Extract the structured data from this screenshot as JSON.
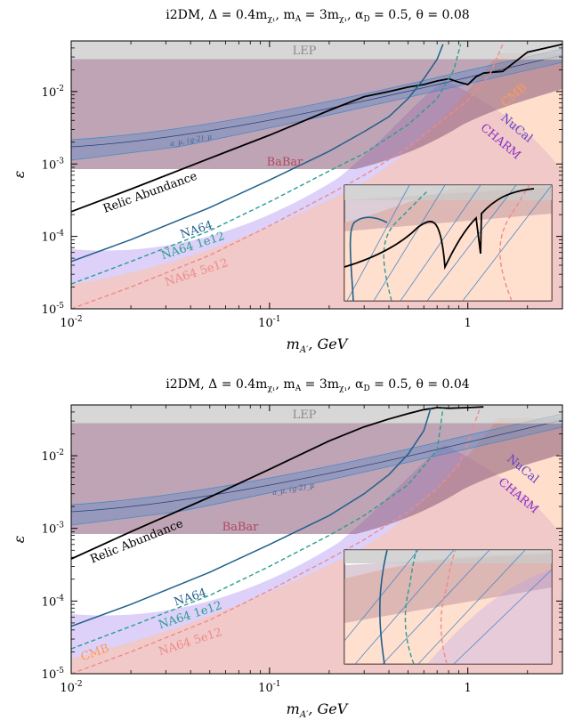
{
  "colors": {
    "lep": "#c9c9c9",
    "babar": "#8a5a78",
    "nucal": "#b39af2",
    "cmb": "#ffc2a0",
    "relic": "#000000",
    "na64": "#1f5f8b",
    "na64_1e12": "#2a9d8f",
    "na64_5e12": "#f08a8a",
    "gm2_band": "#4a88c7"
  },
  "chart_data": [
    {
      "type": "line",
      "title": "i2DM, Δ = 0.4m_{χ1}, m_A = 3m_{χ1}, α_D = 0.5, θ = 0.08",
      "xlabel": "m_{A'}, GeV",
      "ylabel": "ε",
      "xscale": "log",
      "yscale": "log",
      "xlim": [
        0.01,
        3
      ],
      "ylim": [
        1e-05,
        0.05
      ],
      "xticks": [
        "10^{-2}",
        "10^{-1}",
        "1"
      ],
      "yticks": [
        "10^{-5}",
        "10^{-4}",
        "10^{-3}",
        "10^{-2}"
      ],
      "region_labels": [
        "LEP",
        "BaBar",
        "CMB",
        "NuCal",
        "CHARM",
        "a_μ, (g-2)_μ"
      ],
      "series": [
        {
          "name": "Relic Abundance",
          "x": [
            0.01,
            0.02,
            0.05,
            0.1,
            0.2,
            0.3,
            0.4,
            0.5,
            0.6,
            0.7,
            0.8,
            0.9,
            1.0,
            1.1,
            1.2,
            1.5,
            2.0,
            3.0
          ],
          "y": [
            0.00022,
            0.00045,
            0.0012,
            0.0025,
            0.0055,
            0.0085,
            0.01,
            0.0115,
            0.0125,
            0.014,
            0.015,
            0.0135,
            0.0125,
            0.016,
            0.018,
            0.019,
            0.035,
            0.045
          ]
        },
        {
          "name": "NA64",
          "x": [
            0.01,
            0.02,
            0.05,
            0.1,
            0.2,
            0.3,
            0.4,
            0.5,
            0.6,
            0.7,
            0.75
          ],
          "y": [
            4.5e-05,
            9e-05,
            0.00025,
            0.0006,
            0.0015,
            0.0028,
            0.0045,
            0.008,
            0.015,
            0.028,
            0.045
          ]
        },
        {
          "name": "NA64 1e12",
          "x": [
            0.01,
            0.02,
            0.05,
            0.1,
            0.2,
            0.3,
            0.5,
            0.7,
            0.85,
            0.92
          ],
          "y": [
            2.2e-05,
            4.5e-05,
            0.00012,
            0.0003,
            0.0008,
            0.0014,
            0.0035,
            0.008,
            0.02,
            0.045
          ]
        },
        {
          "name": "NA64 5e12",
          "x": [
            0.01,
            0.02,
            0.05,
            0.1,
            0.2,
            0.3,
            0.5,
            0.7,
            1.0,
            1.3,
            1.5
          ],
          "y": [
            1e-05,
            2e-05,
            5.5e-05,
            0.00014,
            0.00038,
            0.0007,
            0.0017,
            0.0035,
            0.0075,
            0.018,
            0.045
          ]
        }
      ]
    },
    {
      "type": "line",
      "title": "i2DM, Δ = 0.4m_{χ1}, m_A = 3m_{χ1}, α_D = 0.5, θ = 0.04",
      "xlabel": "m_{A'}, GeV",
      "ylabel": "ε",
      "xscale": "log",
      "yscale": "log",
      "xlim": [
        0.01,
        3
      ],
      "ylim": [
        1e-05,
        0.05
      ],
      "xticks": [
        "10^{-2}",
        "10^{-1}",
        "1"
      ],
      "yticks": [
        "10^{-5}",
        "10^{-4}",
        "10^{-3}",
        "10^{-2}"
      ],
      "region_labels": [
        "LEP",
        "BaBar",
        "CMB",
        "NuCal",
        "CHARM",
        "a_μ, (g-2)_μ"
      ],
      "series": [
        {
          "name": "Relic Abundance",
          "x": [
            0.01,
            0.02,
            0.05,
            0.1,
            0.2,
            0.3,
            0.4,
            0.5,
            0.6,
            0.7,
            0.8,
            1.0,
            1.2
          ],
          "y": [
            0.00038,
            0.0009,
            0.0027,
            0.0065,
            0.016,
            0.025,
            0.032,
            0.038,
            0.043,
            0.046,
            0.045,
            0.046,
            0.047
          ]
        },
        {
          "name": "NA64",
          "x": [
            0.01,
            0.02,
            0.05,
            0.1,
            0.2,
            0.3,
            0.4,
            0.5,
            0.6,
            0.65
          ],
          "y": [
            4.5e-05,
            9e-05,
            0.00025,
            0.0006,
            0.0015,
            0.003,
            0.0055,
            0.0105,
            0.022,
            0.045
          ]
        },
        {
          "name": "NA64 1e12",
          "x": [
            0.01,
            0.02,
            0.05,
            0.1,
            0.2,
            0.3,
            0.5,
            0.7,
            0.75
          ],
          "y": [
            2.2e-05,
            4.5e-05,
            0.00012,
            0.0003,
            0.0008,
            0.0015,
            0.004,
            0.012,
            0.045
          ]
        },
        {
          "name": "NA64 5e12",
          "x": [
            0.01,
            0.02,
            0.05,
            0.1,
            0.2,
            0.3,
            0.5,
            0.7,
            0.9,
            1.0,
            1.15
          ],
          "y": [
            1e-05,
            2e-05,
            5.5e-05,
            0.00014,
            0.00038,
            0.0007,
            0.0017,
            0.0035,
            0.0075,
            0.015,
            0.045
          ]
        }
      ]
    }
  ]
}
